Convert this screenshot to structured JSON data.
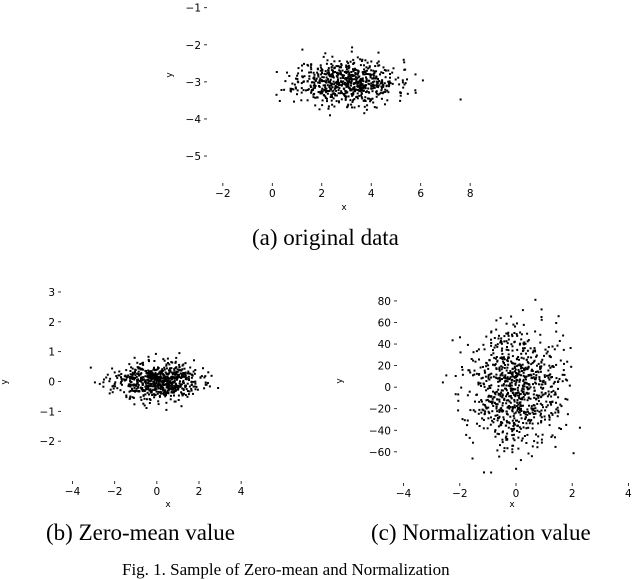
{
  "chart_data": [
    {
      "type": "scatter",
      "caption": "(a) original data",
      "xlabel": "x",
      "ylabel": "y",
      "xlim": [
        -2.6,
        8.6
      ],
      "ylim": [
        -5.7,
        -0.9
      ],
      "xticks": [
        -2,
        0,
        2,
        4,
        6,
        8
      ],
      "yticks": [
        -1,
        -2,
        -3,
        -4,
        -5
      ],
      "grid": false,
      "distribution": {
        "n": 700,
        "x_mean": 3.0,
        "x_sd": 1.0,
        "y_mean": -3.0,
        "y_sd": 0.3
      }
    },
    {
      "type": "scatter",
      "caption": "(b) Zero-mean value",
      "xlabel": "x",
      "ylabel": "y",
      "xlim": [
        -4.5,
        4.8
      ],
      "ylim": [
        -3.3,
        3.3
      ],
      "xticks": [
        -4,
        -2,
        0,
        2,
        4
      ],
      "yticks": [
        3,
        2,
        1,
        0,
        -1,
        -2
      ],
      "grid": false,
      "distribution": {
        "n": 700,
        "x_mean": 0.0,
        "x_sd": 1.0,
        "y_mean": 0.0,
        "y_sd": 0.3
      }
    },
    {
      "type": "scatter",
      "caption": "(c) Normalization value",
      "xlabel": "x",
      "ylabel": "y",
      "xlim": [
        -4.2,
        4.2
      ],
      "ylim": [
        -88,
        92
      ],
      "xticks": [
        -4,
        -2,
        0,
        2,
        4
      ],
      "yticks": [
        80,
        60,
        40,
        20,
        0,
        -20,
        -40,
        -60
      ],
      "grid": false,
      "distribution": {
        "n": 900,
        "x_mean": 0.0,
        "x_sd": 0.8,
        "y_mean": 0.0,
        "y_sd": 27
      }
    }
  ],
  "figure_caption": "Fig. 1.  Sample of Zero-mean and Normalization"
}
